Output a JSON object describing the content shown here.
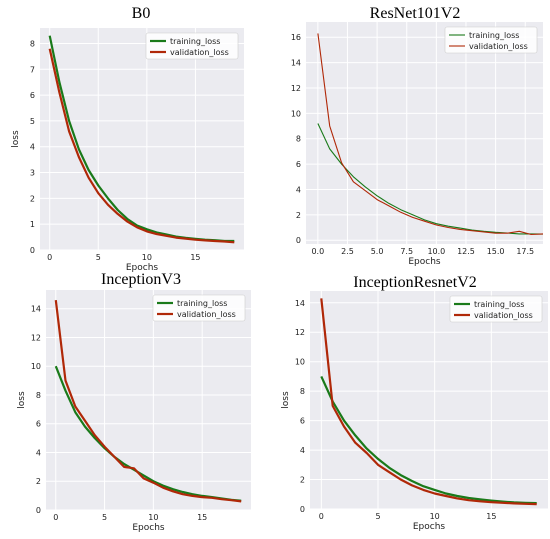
{
  "colors": {
    "training": "#1a7a1a",
    "validation": "#b02808",
    "plot_bg": "#ebebf0",
    "grid": "#ffffff",
    "outer_bg": "#ffffff"
  },
  "chart_data": [
    {
      "type": "line",
      "title": "B0",
      "xlabel": "Epochs",
      "ylabel": "loss",
      "xlim": [
        -1,
        20
      ],
      "ylim": [
        0,
        8.6
      ],
      "xticks": [
        0,
        5,
        10,
        15
      ],
      "yticks": [
        0,
        1,
        2,
        3,
        4,
        5,
        6,
        7,
        8
      ],
      "xtick_labels": [
        "0",
        "5",
        "10",
        "15"
      ],
      "ytick_labels": [
        "0",
        "1",
        "2",
        "3",
        "4",
        "5",
        "6",
        "7",
        "8"
      ],
      "grid": true,
      "legend_position": "top-right",
      "x": [
        0,
        1,
        2,
        3,
        4,
        5,
        6,
        7,
        8,
        9,
        10,
        11,
        12,
        13,
        14,
        15,
        16,
        17,
        18,
        19
      ],
      "series": [
        {
          "name": "training_loss",
          "color_key": "training",
          "values": [
            8.3,
            6.5,
            5.0,
            3.9,
            3.1,
            2.5,
            2.0,
            1.55,
            1.2,
            0.95,
            0.8,
            0.68,
            0.6,
            0.52,
            0.47,
            0.43,
            0.4,
            0.38,
            0.35,
            0.35
          ]
        },
        {
          "name": "validation_loss",
          "color_key": "validation",
          "values": [
            7.8,
            6.1,
            4.6,
            3.6,
            2.8,
            2.2,
            1.75,
            1.4,
            1.1,
            0.88,
            0.72,
            0.62,
            0.55,
            0.48,
            0.44,
            0.4,
            0.37,
            0.35,
            0.33,
            0.3
          ]
        }
      ]
    },
    {
      "type": "line",
      "title": "ResNet101V2",
      "xlabel": "Epochs",
      "ylabel": "",
      "xlim": [
        -1,
        19
      ],
      "ylim": [
        -0.3,
        17.2
      ],
      "xticks": [
        0,
        2.5,
        5,
        7.5,
        10,
        12.5,
        15,
        17.5
      ],
      "yticks": [
        0,
        2,
        4,
        6,
        8,
        10,
        12,
        14,
        16
      ],
      "xtick_labels": [
        "0.0",
        "2.5",
        "5.0",
        "7.5",
        "10.0",
        "12.5",
        "15.0",
        "17.5"
      ],
      "ytick_labels": [
        "0",
        "2",
        "4",
        "6",
        "8",
        "10",
        "12",
        "14",
        "16"
      ],
      "grid": true,
      "legend_position": "top-right",
      "x": [
        0,
        1,
        2,
        3,
        4,
        5,
        6,
        7,
        8,
        9,
        10,
        11,
        12,
        13,
        14,
        15,
        16,
        17,
        18,
        19
      ],
      "series": [
        {
          "name": "training_loss",
          "color_key": "training",
          "values": [
            9.2,
            7.2,
            6.0,
            5.0,
            4.2,
            3.5,
            2.9,
            2.4,
            2.0,
            1.6,
            1.3,
            1.1,
            0.95,
            0.8,
            0.7,
            0.62,
            0.57,
            0.5,
            0.5,
            0.48
          ]
        },
        {
          "name": "validation_loss",
          "color_key": "validation",
          "values": [
            16.3,
            9.0,
            6.1,
            4.6,
            3.9,
            3.2,
            2.7,
            2.2,
            1.8,
            1.5,
            1.2,
            1.0,
            0.85,
            0.75,
            0.65,
            0.55,
            0.55,
            0.7,
            0.45,
            0.5
          ]
        }
      ]
    },
    {
      "type": "line",
      "title": "InceptionV3",
      "xlabel": "Epochs",
      "ylabel": "loss",
      "xlim": [
        -1,
        20
      ],
      "ylim": [
        0,
        15.3
      ],
      "xticks": [
        0,
        5,
        10,
        15
      ],
      "yticks": [
        0,
        2,
        4,
        6,
        8,
        10,
        12,
        14
      ],
      "xtick_labels": [
        "0",
        "5",
        "10",
        "15"
      ],
      "ytick_labels": [
        "0",
        "2",
        "4",
        "6",
        "8",
        "10",
        "12",
        "14"
      ],
      "grid": true,
      "legend_position": "top-right",
      "x": [
        0,
        1,
        2,
        3,
        4,
        5,
        6,
        7,
        8,
        9,
        10,
        11,
        12,
        13,
        14,
        15,
        16,
        17,
        18,
        19
      ],
      "series": [
        {
          "name": "training_loss",
          "color_key": "training",
          "values": [
            10.0,
            8.3,
            6.8,
            5.8,
            5.0,
            4.3,
            3.7,
            3.2,
            2.8,
            2.4,
            2.0,
            1.7,
            1.45,
            1.25,
            1.1,
            0.98,
            0.9,
            0.8,
            0.7,
            0.65
          ]
        },
        {
          "name": "validation_loss",
          "color_key": "validation",
          "values": [
            14.6,
            9.0,
            7.2,
            6.2,
            5.2,
            4.4,
            3.7,
            3.0,
            2.9,
            2.2,
            1.9,
            1.55,
            1.3,
            1.1,
            0.98,
            0.9,
            0.85,
            0.75,
            0.68,
            0.6
          ]
        }
      ]
    },
    {
      "type": "line",
      "title": "InceptionResnetV2",
      "xlabel": "Epochs",
      "ylabel": "loss",
      "xlim": [
        -1,
        20
      ],
      "ylim": [
        0,
        14.8
      ],
      "xticks": [
        0,
        5,
        10,
        15
      ],
      "yticks": [
        0,
        2,
        4,
        6,
        8,
        10,
        12,
        14
      ],
      "xtick_labels": [
        "0",
        "5",
        "10",
        "15"
      ],
      "ytick_labels": [
        "0",
        "2",
        "4",
        "6",
        "8",
        "10",
        "12",
        "14"
      ],
      "grid": true,
      "legend_position": "top-right",
      "x": [
        0,
        1,
        2,
        3,
        4,
        5,
        6,
        7,
        8,
        9,
        10,
        11,
        12,
        13,
        14,
        15,
        16,
        17,
        18,
        19
      ],
      "series": [
        {
          "name": "training_loss",
          "color_key": "training",
          "values": [
            9.0,
            7.3,
            6.0,
            5.0,
            4.1,
            3.4,
            2.8,
            2.3,
            1.9,
            1.55,
            1.3,
            1.05,
            0.88,
            0.75,
            0.65,
            0.57,
            0.5,
            0.45,
            0.42,
            0.4
          ]
        },
        {
          "name": "validation_loss",
          "color_key": "validation",
          "values": [
            14.3,
            7.0,
            5.6,
            4.5,
            3.8,
            3.0,
            2.5,
            2.0,
            1.6,
            1.3,
            1.05,
            0.88,
            0.72,
            0.6,
            0.52,
            0.46,
            0.42,
            0.38,
            0.35,
            0.33
          ]
        }
      ]
    }
  ]
}
